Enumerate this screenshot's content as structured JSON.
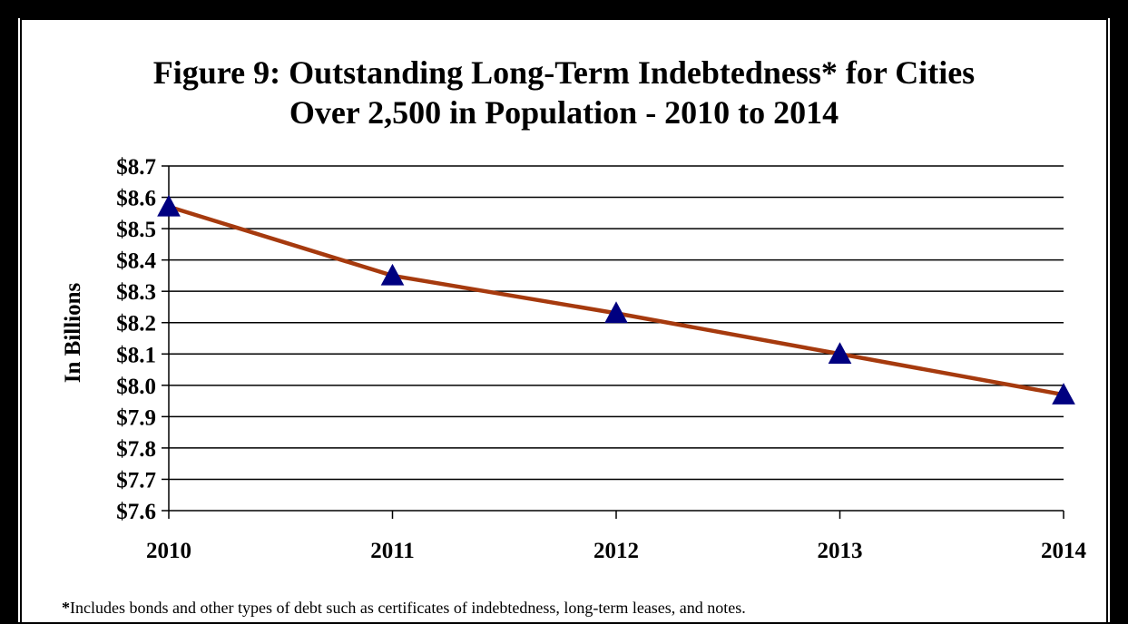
{
  "chart_data": {
    "type": "line",
    "title_lines": [
      "Figure 9:  Outstanding Long-Term Indebtedness* for Cities",
      "Over 2,500 in Population - 2010 to 2014"
    ],
    "ylabel": "In Billions",
    "xlabel": "",
    "categories": [
      "2010",
      "2011",
      "2012",
      "2013",
      "2014"
    ],
    "values": [
      8.57,
      8.35,
      8.23,
      8.1,
      7.97
    ],
    "ylim": [
      7.6,
      8.7
    ],
    "y_ticks": [
      "$7.6",
      "$7.7",
      "$7.8",
      "$7.9",
      "$8.0",
      "$8.1",
      "$8.2",
      "$8.3",
      "$8.4",
      "$8.5",
      "$8.6",
      "$8.7"
    ],
    "y_tick_values": [
      7.6,
      7.7,
      7.8,
      7.9,
      8.0,
      8.1,
      8.2,
      8.3,
      8.4,
      8.5,
      8.6,
      8.7
    ],
    "grid": true,
    "legend": "none",
    "line_color": "#A63A0E",
    "marker": "triangle",
    "marker_color": "#000080",
    "footnote_star": "*",
    "footnote": "Includes bonds and other types of debt such as certificates of indebtedness, long-term leases, and notes."
  }
}
